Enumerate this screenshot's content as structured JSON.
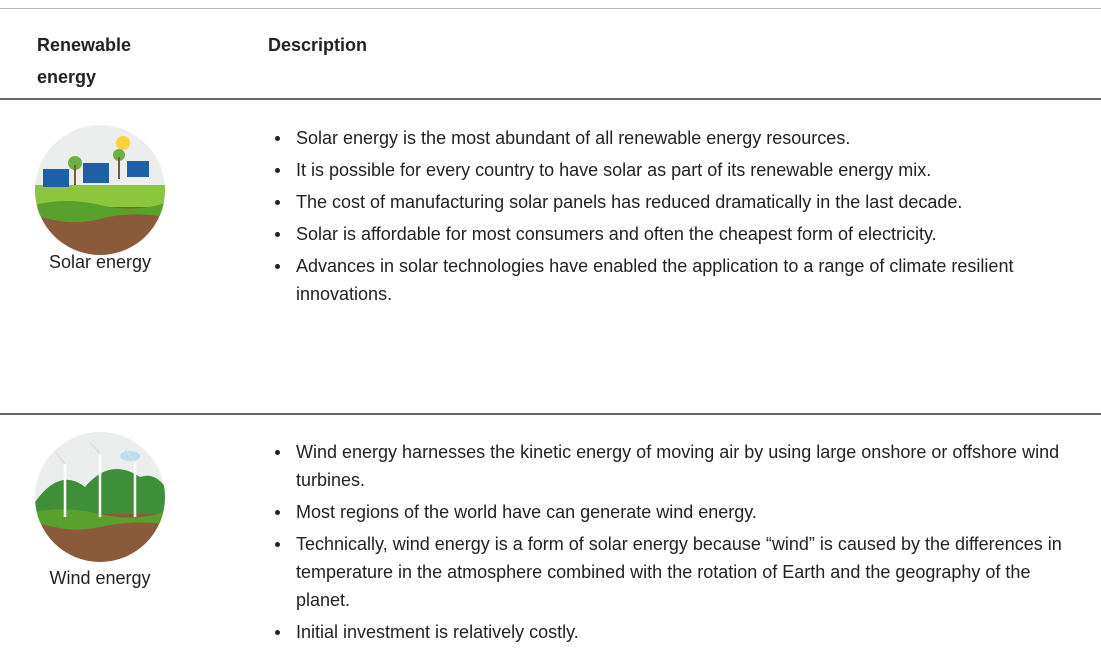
{
  "table": {
    "header": [
      "Renewable energy",
      "Description"
    ],
    "rows": [
      {
        "name": "Solar energy",
        "bullets": [
          "Solar energy is the most abundant of all renewable energy resources.",
          "It is possible for every country to have solar as part of its renewable energy mix.",
          "The cost of manufacturing solar panels has reduced dramatically in the last decade.",
          "Solar is affordable for most consumers and often the cheapest form of electricity.",
          "Advances in solar technologies have enabled the application to a range of climate resilient innovations."
        ]
      },
      {
        "name": "Wind energy",
        "bullets": [
          "Wind energy harnesses the kinetic energy of moving air by using large onshore or offshore wind turbines.",
          "Most regions of the world have can generate wind energy.",
          "Technically, wind energy is a form of solar energy because “wind” is caused by the differences in temperature in the atmosphere combined with the rotation of Earth and the geography of the planet.",
          "Initial investment is relatively costly."
        ]
      }
    ]
  }
}
